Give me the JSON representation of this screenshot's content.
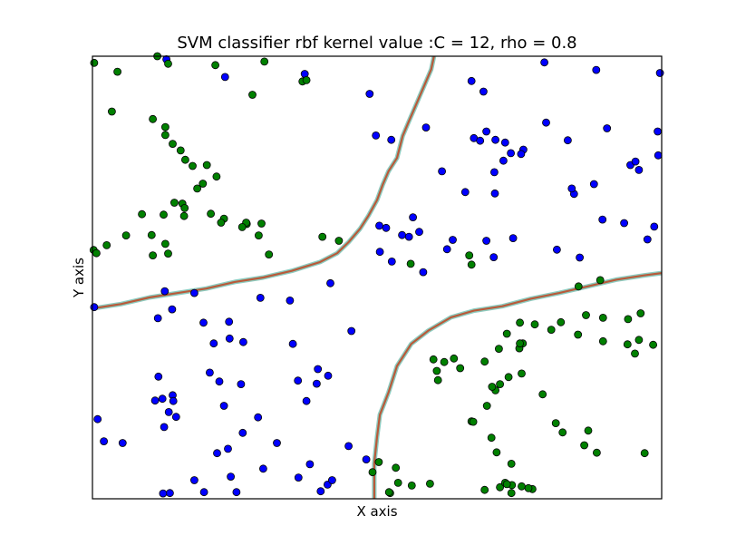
{
  "chart_data": {
    "type": "scatter",
    "title": "SVM classifier rbf kernel value :C = 12, rho = 0.8",
    "xlabel": "X axis",
    "ylabel": "Y axis",
    "xlim": [
      0,
      100
    ],
    "ylim": [
      0,
      100
    ],
    "grid": false,
    "ticks_visible": false,
    "colors": {
      "class_1": "#0000ff",
      "class_2": "#008000",
      "boundary": "#b85a3a",
      "boundary_halo": "#8ccbbf"
    },
    "series": [
      {
        "class": "class_1",
        "points": [
          [
            13.0,
            99.3
          ],
          [
            23.3,
            95.3
          ],
          [
            37.3,
            96.0
          ],
          [
            48.7,
            91.5
          ],
          [
            66.6,
            94.4
          ],
          [
            68.7,
            92.0
          ],
          [
            79.4,
            98.6
          ],
          [
            88.5,
            96.9
          ],
          [
            99.7,
            96.2
          ],
          [
            49.8,
            82.1
          ],
          [
            52.5,
            81.1
          ],
          [
            58.6,
            83.9
          ],
          [
            67.0,
            81.5
          ],
          [
            69.2,
            83.0
          ],
          [
            68.1,
            80.9
          ],
          [
            70.8,
            81.1
          ],
          [
            72.5,
            80.5
          ],
          [
            75.7,
            78.9
          ],
          [
            73.5,
            78.1
          ],
          [
            72.2,
            76.4
          ],
          [
            75.3,
            77.9
          ],
          [
            79.7,
            85.0
          ],
          [
            83.5,
            81.0
          ],
          [
            90.4,
            83.7
          ],
          [
            99.3,
            83.0
          ],
          [
            61.4,
            74.0
          ],
          [
            65.5,
            69.3
          ],
          [
            70.6,
            73.8
          ],
          [
            70.7,
            69.0
          ],
          [
            84.6,
            68.9
          ],
          [
            84.2,
            70.1
          ],
          [
            88.1,
            71.1
          ],
          [
            94.5,
            75.4
          ],
          [
            96.0,
            74.3
          ],
          [
            95.4,
            76.2
          ],
          [
            99.4,
            77.6
          ],
          [
            50.4,
            61.7
          ],
          [
            51.6,
            61.2
          ],
          [
            56.3,
            63.6
          ],
          [
            54.4,
            59.6
          ],
          [
            55.6,
            59.2
          ],
          [
            57.4,
            60.3
          ],
          [
            63.3,
            58.5
          ],
          [
            69.2,
            58.3
          ],
          [
            73.9,
            58.9
          ],
          [
            89.6,
            63.1
          ],
          [
            93.4,
            62.3
          ],
          [
            98.7,
            61.5
          ],
          [
            97.5,
            58.6
          ],
          [
            50.5,
            55.8
          ],
          [
            52.6,
            53.6
          ],
          [
            58.1,
            51.2
          ],
          [
            62.3,
            56.4
          ],
          [
            70.5,
            54.6
          ],
          [
            81.6,
            56.3
          ],
          [
            85.6,
            54.5
          ],
          [
            0.3,
            43.3
          ],
          [
            12.7,
            46.9
          ],
          [
            17.9,
            46.5
          ],
          [
            14.0,
            42.8
          ],
          [
            11.5,
            40.8
          ],
          [
            19.5,
            39.8
          ],
          [
            24.0,
            40.0
          ],
          [
            29.5,
            45.4
          ],
          [
            34.7,
            44.8
          ],
          [
            41.8,
            48.7
          ],
          [
            45.5,
            37.9
          ],
          [
            35.2,
            35.0
          ],
          [
            21.3,
            35.1
          ],
          [
            24.1,
            36.2
          ],
          [
            26.5,
            35.4
          ],
          [
            20.6,
            28.5
          ],
          [
            14.1,
            23.4
          ],
          [
            11.0,
            22.2
          ],
          [
            12.3,
            22.6
          ],
          [
            11.6,
            27.6
          ],
          [
            22.3,
            26.5
          ],
          [
            26.1,
            25.9
          ],
          [
            36.1,
            26.7
          ],
          [
            39.4,
            26.0
          ],
          [
            41.4,
            27.8
          ],
          [
            39.6,
            29.3
          ],
          [
            14.7,
            18.5
          ],
          [
            23.1,
            21.0
          ],
          [
            29.1,
            18.4
          ],
          [
            13.4,
            19.6
          ],
          [
            14.2,
            22.1
          ],
          [
            0.9,
            18.0
          ],
          [
            2.0,
            13.0
          ],
          [
            5.3,
            12.6
          ],
          [
            12.6,
            16.2
          ],
          [
            21.9,
            10.3
          ],
          [
            23.8,
            11.3
          ],
          [
            26.4,
            14.9
          ],
          [
            37.6,
            22.1
          ],
          [
            32.4,
            12.6
          ],
          [
            30.0,
            6.8
          ],
          [
            24.3,
            5.0
          ],
          [
            25.3,
            1.5
          ],
          [
            13.6,
            1.3
          ],
          [
            12.4,
            1.2
          ],
          [
            17.9,
            4.2
          ],
          [
            19.6,
            1.5
          ],
          [
            38.2,
            7.8
          ],
          [
            36.2,
            4.8
          ],
          [
            41.3,
            3.2
          ],
          [
            42.1,
            4.2
          ],
          [
            40.1,
            1.7
          ],
          [
            48.1,
            8.9
          ],
          [
            45.0,
            11.9
          ]
        ]
      },
      {
        "class": "class_2",
        "points": [
          [
            0.3,
            98.5
          ],
          [
            4.4,
            96.5
          ],
          [
            11.4,
            100.0
          ],
          [
            13.3,
            98.3
          ],
          [
            21.6,
            98.0
          ],
          [
            30.2,
            98.8
          ],
          [
            36.9,
            94.3
          ],
          [
            37.6,
            94.6
          ],
          [
            28.1,
            91.3
          ],
          [
            3.4,
            87.5
          ],
          [
            10.6,
            85.8
          ],
          [
            12.8,
            84.0
          ],
          [
            12.8,
            82.2
          ],
          [
            14.1,
            80.2
          ],
          [
            15.5,
            78.7
          ],
          [
            17.6,
            75.2
          ],
          [
            16.3,
            76.6
          ],
          [
            20.1,
            75.4
          ],
          [
            21.8,
            72.8
          ],
          [
            18.4,
            70.1
          ],
          [
            19.4,
            71.2
          ],
          [
            15.8,
            66.7
          ],
          [
            16.1,
            63.9
          ],
          [
            20.8,
            64.4
          ],
          [
            23.1,
            63.3
          ],
          [
            22.6,
            62.4
          ],
          [
            27.1,
            62.1
          ],
          [
            27.0,
            62.4
          ],
          [
            29.7,
            62.2
          ],
          [
            26.3,
            61.4
          ],
          [
            14.4,
            66.9
          ],
          [
            16.2,
            65.7
          ],
          [
            5.9,
            59.5
          ],
          [
            8.7,
            64.3
          ],
          [
            12.5,
            64.2
          ],
          [
            0.2,
            56.2
          ],
          [
            0.7,
            55.5
          ],
          [
            2.5,
            57.3
          ],
          [
            10.4,
            59.6
          ],
          [
            12.8,
            57.6
          ],
          [
            10.6,
            55.0
          ],
          [
            13.3,
            55.4
          ],
          [
            29.2,
            59.5
          ],
          [
            40.4,
            59.2
          ],
          [
            31.0,
            55.2
          ],
          [
            43.3,
            58.3
          ],
          [
            55.9,
            53.1
          ],
          [
            66.2,
            55.0
          ],
          [
            66.6,
            52.9
          ],
          [
            85.4,
            48.0
          ],
          [
            89.2,
            49.4
          ],
          [
            94.1,
            40.6
          ],
          [
            96.3,
            41.9
          ],
          [
            89.7,
            35.6
          ],
          [
            96.0,
            35.9
          ],
          [
            72.8,
            37.3
          ],
          [
            75.1,
            39.8
          ],
          [
            77.7,
            39.4
          ],
          [
            71.4,
            33.9
          ],
          [
            75.6,
            35.1
          ],
          [
            82.3,
            39.9
          ],
          [
            86.7,
            41.5
          ],
          [
            89.7,
            40.9
          ],
          [
            75.0,
            34.0
          ],
          [
            75.1,
            35.1
          ],
          [
            80.6,
            38.2
          ],
          [
            85.3,
            37.1
          ],
          [
            94.0,
            34.9
          ],
          [
            98.5,
            34.8
          ],
          [
            95.3,
            32.8
          ],
          [
            59.9,
            31.5
          ],
          [
            68.9,
            31.0
          ],
          [
            61.8,
            30.9
          ],
          [
            60.5,
            28.9
          ],
          [
            63.5,
            31.7
          ],
          [
            64.6,
            29.5
          ],
          [
            60.7,
            26.8
          ],
          [
            75.4,
            28.3
          ],
          [
            73.1,
            27.5
          ],
          [
            71.6,
            25.9
          ],
          [
            70.8,
            24.5
          ],
          [
            70.2,
            25.3
          ],
          [
            79.1,
            23.6
          ],
          [
            81.4,
            17.1
          ],
          [
            82.6,
            15.0
          ],
          [
            87.1,
            15.4
          ],
          [
            86.4,
            12.1
          ],
          [
            88.6,
            10.4
          ],
          [
            97.0,
            10.3
          ],
          [
            73.6,
            1.3
          ],
          [
            68.9,
            2.0
          ],
          [
            71.6,
            2.6
          ],
          [
            75.4,
            2.8
          ],
          [
            73.6,
            7.9
          ],
          [
            73.7,
            3.1
          ],
          [
            72.5,
            3.6
          ],
          [
            77.3,
            2.2
          ],
          [
            71.0,
            10.5
          ],
          [
            70.1,
            13.8
          ],
          [
            69.3,
            21.0
          ],
          [
            66.6,
            17.5
          ],
          [
            66.9,
            17.4
          ],
          [
            52.3,
            1.3
          ],
          [
            50.3,
            8.3
          ],
          [
            52.1,
            1.5
          ],
          [
            49.2,
            6.0
          ],
          [
            53.3,
            7.0
          ],
          [
            53.7,
            3.6
          ],
          [
            56.1,
            3.0
          ],
          [
            59.3,
            3.4
          ],
          [
            76.6,
            2.4
          ],
          [
            72.8,
            3.3
          ]
        ]
      }
    ],
    "decision_boundary": [
      [
        [
          0,
          43
        ],
        [
          5,
          44
        ],
        [
          10,
          45.5
        ],
        [
          15,
          46.5
        ],
        [
          20,
          47.5
        ],
        [
          25,
          49
        ],
        [
          30,
          50
        ],
        [
          35,
          51.5
        ],
        [
          40,
          53.5
        ],
        [
          43,
          55.5
        ],
        [
          45,
          58
        ],
        [
          47,
          61
        ],
        [
          48.5,
          64
        ],
        [
          50,
          67.5
        ],
        [
          51,
          71
        ],
        [
          52,
          74
        ],
        [
          53.5,
          77
        ],
        [
          54.5,
          82
        ],
        [
          55.5,
          85
        ],
        [
          56.5,
          88
        ],
        [
          57.5,
          91
        ],
        [
          58.5,
          94
        ],
        [
          59.5,
          97
        ],
        [
          60,
          100
        ]
      ],
      [
        [
          49.5,
          0
        ],
        [
          49.5,
          8
        ],
        [
          50,
          14
        ],
        [
          50.5,
          19
        ],
        [
          52,
          24
        ],
        [
          53.5,
          30
        ],
        [
          56,
          35
        ],
        [
          59,
          38
        ],
        [
          63,
          41
        ],
        [
          67,
          42.5
        ],
        [
          72,
          43.5
        ],
        [
          77,
          45.2
        ],
        [
          82,
          46.5
        ],
        [
          87,
          48
        ],
        [
          92,
          49.5
        ],
        [
          97,
          50.5
        ],
        [
          100,
          51
        ]
      ]
    ]
  }
}
